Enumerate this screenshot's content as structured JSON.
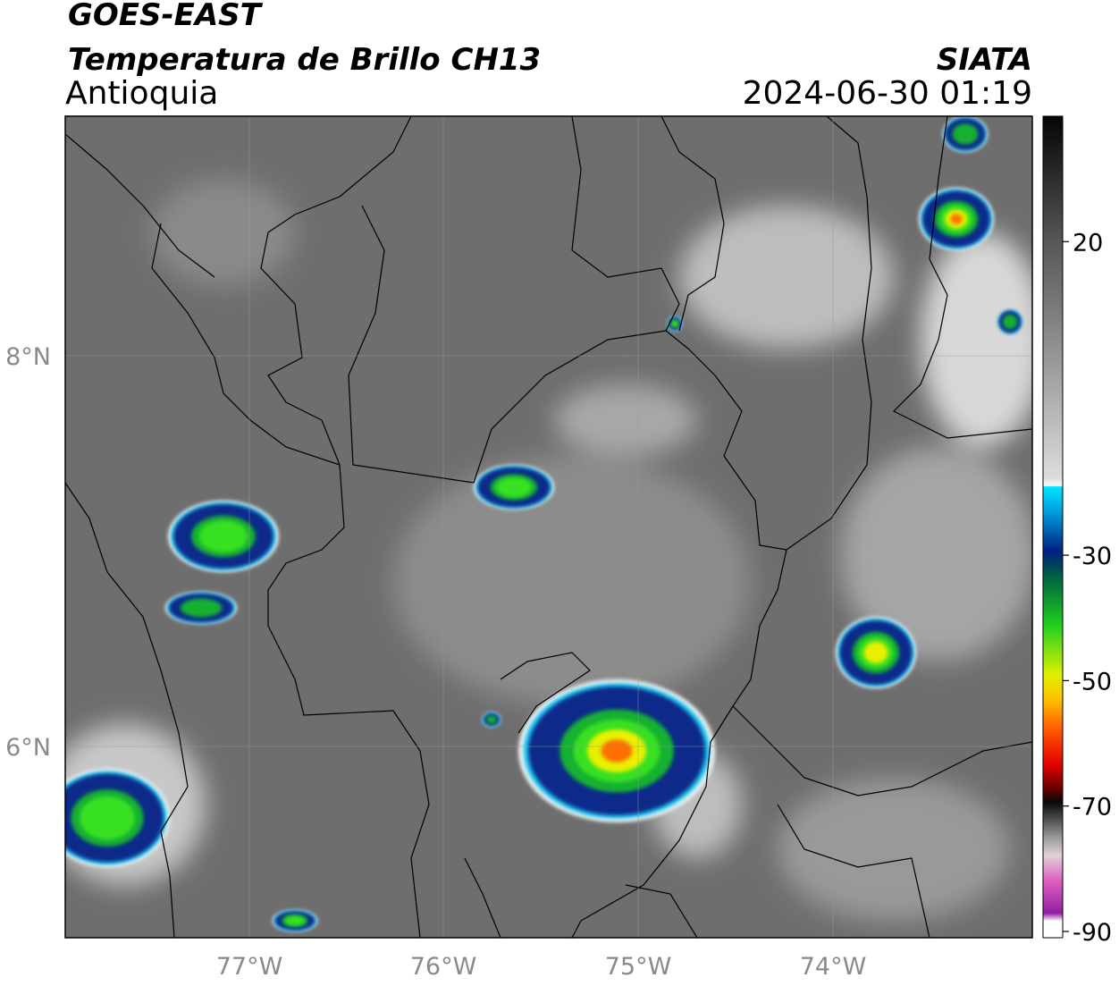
{
  "header": {
    "title": "GOES-EAST",
    "subtitle": "Temperatura de Brillo CH13",
    "region": "Antioquia",
    "source": "SIATA",
    "datetime": "2024-06-30 01:19"
  },
  "map": {
    "lat_labels": [
      "8°N",
      "6°N"
    ],
    "lon_labels": [
      "77°W",
      "76°W",
      "75°W",
      "74°W"
    ]
  },
  "colorbar": {
    "lim": [
      -91,
      40
    ],
    "ticks": [
      20,
      -30,
      -50,
      -70,
      -90
    ]
  }
}
